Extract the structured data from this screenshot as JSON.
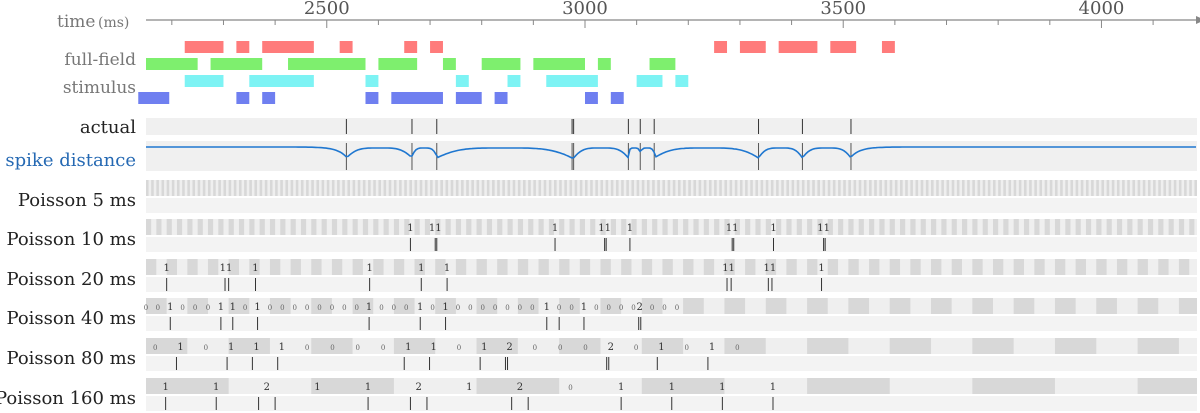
{
  "chart_data": {
    "type": "raster",
    "xaxis": {
      "title": "time",
      "unit": "(ms)",
      "range": [
        2150,
        4185
      ],
      "ticks": [
        2500,
        3000,
        3500,
        4000
      ],
      "tick_labels": [
        "2500",
        "3000",
        "3500",
        "4000"
      ]
    },
    "stimulus": {
      "labels": [
        "full-field",
        "stimulus"
      ],
      "colors": {
        "red": "#ff7b7b",
        "green": "#7eef6e",
        "cyan": "#7df3f4",
        "blue": "#6f7ff0"
      },
      "bars": {
        "red": [
          [
            2225,
            2300
          ],
          [
            2325,
            2350
          ],
          [
            2375,
            2475
          ],
          [
            2525,
            2550
          ],
          [
            2650,
            2675
          ],
          [
            2700,
            2725
          ],
          [
            3250,
            3275
          ],
          [
            3300,
            3350
          ],
          [
            3375,
            3450
          ],
          [
            3475,
            3525
          ],
          [
            3575,
            3600
          ]
        ],
        "green": [
          [
            2150,
            2250
          ],
          [
            2275,
            2375
          ],
          [
            2425,
            2575
          ],
          [
            2600,
            2675
          ],
          [
            2725,
            2750
          ],
          [
            2800,
            2875
          ],
          [
            2900,
            3000
          ],
          [
            3025,
            3050
          ],
          [
            3125,
            3175
          ]
        ],
        "cyan": [
          [
            2225,
            2300
          ],
          [
            2350,
            2475
          ],
          [
            2575,
            2600
          ],
          [
            2750,
            2775
          ],
          [
            2850,
            2875
          ],
          [
            2925,
            3025
          ],
          [
            3100,
            3150
          ],
          [
            3175,
            3200
          ]
        ],
        "blue": [
          [
            2135,
            2195
          ],
          [
            2325,
            2350
          ],
          [
            2375,
            2400
          ],
          [
            2575,
            2600
          ],
          [
            2625,
            2725
          ],
          [
            2750,
            2800
          ],
          [
            2825,
            2850
          ],
          [
            3000,
            3025
          ],
          [
            3050,
            3075
          ]
        ]
      }
    },
    "actual": {
      "label": "actual",
      "spikes": [
        2538,
        2665,
        2713,
        2975,
        2978,
        3084,
        3107,
        3134,
        3336,
        3421,
        3515
      ]
    },
    "spike_distance": {
      "label": "spike distance",
      "color": "#1f77d0"
    },
    "poisson_rows": [
      {
        "label": "Poisson 5 ms",
        "bin": 5,
        "counts": [],
        "spikes": []
      },
      {
        "label": "Poisson 10 ms",
        "bin": 10,
        "counts": [
          {
            "t": 2662,
            "c": "1"
          },
          {
            "t": 2710,
            "c": "11"
          },
          {
            "t": 2942,
            "c": "1"
          },
          {
            "t": 3038,
            "c": "11"
          },
          {
            "t": 3087,
            "c": "1"
          },
          {
            "t": 3285,
            "c": "11"
          },
          {
            "t": 3365,
            "c": "1"
          },
          {
            "t": 3462,
            "c": "11"
          }
        ],
        "spikes": [
          2662,
          2710,
          2713,
          2942,
          3038,
          3041,
          3087,
          3285,
          3288,
          3365,
          3462,
          3465
        ]
      },
      {
        "label": "Poisson 20 ms",
        "bin": 20,
        "counts": [
          {
            "t": 2190,
            "c": "1"
          },
          {
            "t": 2305,
            "c": "11"
          },
          {
            "t": 2362,
            "c": "1"
          },
          {
            "t": 2583,
            "c": "1"
          },
          {
            "t": 2683,
            "c": "1"
          },
          {
            "t": 2733,
            "c": "1"
          },
          {
            "t": 3278,
            "c": "11"
          },
          {
            "t": 3358,
            "c": "11"
          },
          {
            "t": 3458,
            "c": "1"
          }
        ],
        "spikes": [
          2190,
          2303,
          2310,
          2362,
          2583,
          2683,
          2733,
          3275,
          3283,
          3355,
          3362,
          3458
        ]
      },
      {
        "label": "Poisson 40 ms",
        "bin": 40,
        "counts": [
          {
            "t": 2150,
            "c": "0"
          },
          {
            "t": 2173,
            "c": "0"
          },
          {
            "t": 2197,
            "c": "1"
          },
          {
            "t": 2221,
            "c": "0"
          },
          {
            "t": 2245,
            "c": "0"
          },
          {
            "t": 2270,
            "c": "0"
          },
          {
            "t": 2295,
            "c": "1"
          },
          {
            "t": 2318,
            "c": "1"
          },
          {
            "t": 2342,
            "c": "0"
          },
          {
            "t": 2366,
            "c": "1"
          },
          {
            "t": 2390,
            "c": "0"
          },
          {
            "t": 2414,
            "c": "0"
          },
          {
            "t": 2438,
            "c": "0"
          },
          {
            "t": 2462,
            "c": "0"
          },
          {
            "t": 2486,
            "c": "0"
          },
          {
            "t": 2510,
            "c": "0"
          },
          {
            "t": 2534,
            "c": "0"
          },
          {
            "t": 2558,
            "c": "0"
          },
          {
            "t": 2582,
            "c": "1"
          },
          {
            "t": 2606,
            "c": "0"
          },
          {
            "t": 2630,
            "c": "0"
          },
          {
            "t": 2654,
            "c": "0"
          },
          {
            "t": 2681,
            "c": "1"
          },
          {
            "t": 2705,
            "c": "0"
          },
          {
            "t": 2730,
            "c": "1"
          },
          {
            "t": 2754,
            "c": "0"
          },
          {
            "t": 2778,
            "c": "0"
          },
          {
            "t": 2802,
            "c": "0"
          },
          {
            "t": 2826,
            "c": "0"
          },
          {
            "t": 2850,
            "c": "0"
          },
          {
            "t": 2874,
            "c": "0"
          },
          {
            "t": 2898,
            "c": "0"
          },
          {
            "t": 2926,
            "c": "1"
          },
          {
            "t": 2950,
            "c": "0"
          },
          {
            "t": 2974,
            "c": "0"
          },
          {
            "t": 2998,
            "c": "1"
          },
          {
            "t": 3022,
            "c": "0"
          },
          {
            "t": 3046,
            "c": "0"
          },
          {
            "t": 3070,
            "c": "0"
          },
          {
            "t": 3094,
            "c": "0"
          },
          {
            "t": 3106,
            "c": "2"
          },
          {
            "t": 3130,
            "c": "0"
          },
          {
            "t": 3154,
            "c": "0"
          },
          {
            "t": 3178,
            "c": "0"
          }
        ],
        "spikes": [
          2197,
          2295,
          2318,
          2366,
          2582,
          2681,
          2730,
          2926,
          2950,
          2998,
          3104,
          3108
        ]
      },
      {
        "label": "Poisson 80 ms",
        "bin": 80,
        "counts": [
          {
            "t": 2168,
            "c": "0"
          },
          {
            "t": 2217,
            "c": "1"
          },
          {
            "t": 2266,
            "c": "0"
          },
          {
            "t": 2315,
            "c": "1"
          },
          {
            "t": 2364,
            "c": "1"
          },
          {
            "t": 2413,
            "c": "1"
          },
          {
            "t": 2462,
            "c": "0"
          },
          {
            "t": 2511,
            "c": "0"
          },
          {
            "t": 2560,
            "c": "0"
          },
          {
            "t": 2609,
            "c": "0"
          },
          {
            "t": 2658,
            "c": "1"
          },
          {
            "t": 2707,
            "c": "1"
          },
          {
            "t": 2756,
            "c": "0"
          },
          {
            "t": 2805,
            "c": "1"
          },
          {
            "t": 2854,
            "c": "2"
          },
          {
            "t": 2903,
            "c": "0"
          },
          {
            "t": 2952,
            "c": "0"
          },
          {
            "t": 3001,
            "c": "0"
          },
          {
            "t": 3050,
            "c": "2"
          },
          {
            "t": 3099,
            "c": "0"
          },
          {
            "t": 3148,
            "c": "1"
          },
          {
            "t": 3197,
            "c": "0"
          },
          {
            "t": 3246,
            "c": "1"
          },
          {
            "t": 3295,
            "c": "0"
          }
        ],
        "spikes": [
          2209,
          2307,
          2356,
          2405,
          2650,
          2699,
          2797,
          2846,
          2850,
          3042,
          3046,
          3140,
          3238
        ]
      },
      {
        "label": "Poisson 160 ms",
        "bin": 160,
        "counts": [
          {
            "t": 2188,
            "c": "1"
          },
          {
            "t": 2286,
            "c": "1"
          },
          {
            "t": 2384,
            "c": "2"
          },
          {
            "t": 2482,
            "c": "1"
          },
          {
            "t": 2580,
            "c": "1"
          },
          {
            "t": 2678,
            "c": "2"
          },
          {
            "t": 2776,
            "c": "1"
          },
          {
            "t": 2874,
            "c": "2"
          },
          {
            "t": 2972,
            "c": "0"
          },
          {
            "t": 3070,
            "c": "1"
          },
          {
            "t": 3168,
            "c": "1"
          },
          {
            "t": 3266,
            "c": "1"
          },
          {
            "t": 3364,
            "c": "1"
          }
        ],
        "spikes": [
          2188,
          2286,
          2368,
          2400,
          2580,
          2662,
          2694,
          2858,
          2890,
          3070,
          3168,
          3266,
          3364
        ]
      }
    ]
  }
}
